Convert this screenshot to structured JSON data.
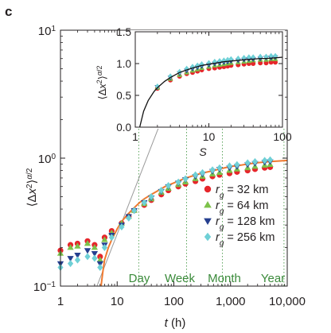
{
  "panel_letter": "c",
  "colors": {
    "red": "#e6262b",
    "green": "#7dc24a",
    "blue": "#253f8f",
    "cyan": "#6fd0d6",
    "fit": "#f07a30",
    "grey": "#9a9a9a",
    "timeline": "#4a9a4a"
  },
  "chart_data": [
    {
      "type": "scatter",
      "scale": "log-log",
      "xlabel": "t (h)",
      "ylabel": "⟨Δx²⟩^(α/2)",
      "xlim": [
        1,
        10000
      ],
      "ylim": [
        0.1,
        10
      ],
      "xticks": [
        {
          "v": 1,
          "label": "1"
        },
        {
          "v": 10,
          "label": "10"
        },
        {
          "v": 100,
          "label": "100"
        },
        {
          "v": 1000,
          "label": "1,000"
        },
        {
          "v": 10000,
          "label": "10,000"
        }
      ],
      "yticks": [
        {
          "v": 0.1,
          "base": "10",
          "exp": "−1"
        },
        {
          "v": 1,
          "base": "10",
          "exp": "0"
        },
        {
          "v": 10,
          "base": "10",
          "exp": "1"
        }
      ],
      "time_markers": [
        {
          "label": "Day",
          "x": 24
        },
        {
          "label": "Week",
          "x": 168
        },
        {
          "label": "Month",
          "x": 720
        },
        {
          "label": "Year",
          "x": 8760
        }
      ],
      "legend_position": "lower-right",
      "series": [
        {
          "name": "r_g = 32 km",
          "symbol_text": "r",
          "subscript": "g",
          "value_text": " = 32 km",
          "color_key": "red",
          "marker": "circle",
          "x": [
            1,
            1.5,
            2,
            3,
            4,
            5,
            6,
            8,
            12,
            16,
            20,
            30,
            40,
            60,
            80,
            120,
            160,
            240,
            320,
            480,
            640,
            960,
            1300,
            2000,
            2700,
            4000,
            5000
          ],
          "y": [
            0.19,
            0.21,
            0.215,
            0.225,
            0.21,
            0.17,
            0.24,
            0.27,
            0.31,
            0.35,
            0.39,
            0.43,
            0.47,
            0.52,
            0.56,
            0.6,
            0.63,
            0.66,
            0.69,
            0.72,
            0.74,
            0.76,
            0.78,
            0.8,
            0.82,
            0.84,
            0.85
          ]
        },
        {
          "name": "r_g = 64 km",
          "symbol_text": "r",
          "subscript": "g",
          "value_text": " = 64 km",
          "color_key": "green",
          "marker": "triangle-up",
          "x": [
            1,
            1.5,
            2,
            3,
            4,
            5,
            6,
            8,
            12,
            16,
            20,
            30,
            40,
            60,
            80,
            120,
            160,
            240,
            320,
            480,
            640,
            960,
            1300,
            2000,
            2700,
            4000,
            5000
          ],
          "y": [
            0.18,
            0.2,
            0.205,
            0.215,
            0.2,
            0.16,
            0.23,
            0.26,
            0.31,
            0.35,
            0.39,
            0.44,
            0.48,
            0.54,
            0.58,
            0.62,
            0.65,
            0.69,
            0.72,
            0.75,
            0.77,
            0.8,
            0.82,
            0.84,
            0.86,
            0.88,
            0.89
          ]
        },
        {
          "name": "r_g = 128 km",
          "symbol_text": "r",
          "subscript": "g",
          "value_text": " = 128 km",
          "color_key": "blue",
          "marker": "triangle-down",
          "x": [
            1,
            1.5,
            2,
            3,
            4,
            5,
            6,
            8,
            12,
            16,
            20,
            30,
            40,
            60,
            80,
            120,
            160,
            240,
            320,
            480,
            640,
            960,
            1300,
            2000,
            2700,
            4000,
            5000
          ],
          "y": [
            0.15,
            0.165,
            0.175,
            0.19,
            0.18,
            0.15,
            0.21,
            0.25,
            0.3,
            0.35,
            0.39,
            0.45,
            0.49,
            0.55,
            0.6,
            0.64,
            0.68,
            0.72,
            0.75,
            0.79,
            0.82,
            0.84,
            0.86,
            0.89,
            0.91,
            0.93,
            0.94
          ]
        },
        {
          "name": "r_g = 256 km",
          "symbol_text": "r",
          "subscript": "g",
          "value_text": " = 256 km",
          "color_key": "cyan",
          "marker": "diamond",
          "x": [
            1,
            1.5,
            2,
            3,
            4,
            5,
            6,
            8,
            12,
            16,
            20,
            30,
            40,
            60,
            80,
            120,
            160,
            240,
            320,
            480,
            640,
            960,
            1300,
            2000,
            2700,
            4000,
            5000
          ],
          "y": [
            0.14,
            0.15,
            0.16,
            0.17,
            0.165,
            0.14,
            0.2,
            0.24,
            0.29,
            0.34,
            0.39,
            0.45,
            0.5,
            0.56,
            0.61,
            0.65,
            0.69,
            0.74,
            0.77,
            0.81,
            0.84,
            0.87,
            0.89,
            0.92,
            0.94,
            0.96,
            0.97
          ]
        }
      ],
      "fit_curve": {
        "color_key": "fit",
        "x": [
          5.2,
          5.6,
          6,
          7,
          8,
          10,
          12,
          15,
          20,
          25,
          30,
          40,
          50,
          70,
          100,
          150,
          200,
          300,
          500,
          700,
          1000,
          1500,
          2000,
          3000,
          5000,
          7000,
          10000
        ],
        "y": [
          0.1,
          0.13,
          0.16,
          0.2,
          0.23,
          0.28,
          0.32,
          0.36,
          0.41,
          0.45,
          0.48,
          0.52,
          0.55,
          0.6,
          0.64,
          0.69,
          0.72,
          0.76,
          0.8,
          0.83,
          0.86,
          0.88,
          0.9,
          0.92,
          0.94,
          0.95,
          0.96
        ]
      },
      "reference_line": {
        "color_key": "grey",
        "x": [
          4.4,
          250
        ],
        "y": [
          0.1,
          10
        ]
      }
    },
    {
      "type": "scatter",
      "role": "inset",
      "scale": "log-x",
      "xlabel": "S",
      "ylabel": "⟨Δx²⟩^(α/2)",
      "xlim": [
        1,
        100
      ],
      "ylim": [
        0,
        1.5
      ],
      "xticks": [
        {
          "v": 1,
          "label": "1"
        },
        {
          "v": 10,
          "label": "10"
        },
        {
          "v": 100,
          "label": "100"
        }
      ],
      "yticks": [
        {
          "v": 0,
          "label": "0.0"
        },
        {
          "v": 0.5,
          "label": "0.5"
        },
        {
          "v": 1,
          "label": "1.0"
        },
        {
          "v": 1.5,
          "label": "1.5"
        }
      ],
      "series": [
        {
          "name": "r_g = 32 km",
          "color_key": "red",
          "marker": "circle",
          "x": [
            2,
            3,
            4,
            5,
            6,
            7,
            8,
            10,
            12,
            14,
            16,
            18,
            20,
            25,
            30,
            35,
            40,
            50,
            60,
            70,
            80
          ],
          "y": [
            0.61,
            0.74,
            0.8,
            0.84,
            0.86,
            0.88,
            0.9,
            0.92,
            0.93,
            0.94,
            0.95,
            0.96,
            0.97,
            0.98,
            0.99,
            1.0,
            1.0,
            1.01,
            1.01,
            1.02,
            1.02
          ]
        },
        {
          "name": "r_g = 64 km",
          "color_key": "green",
          "marker": "triangle-up",
          "x": [
            2,
            3,
            4,
            5,
            6,
            7,
            8,
            10,
            12,
            14,
            16,
            18,
            20,
            25,
            30,
            35,
            40,
            50,
            60,
            70,
            80
          ],
          "y": [
            0.62,
            0.76,
            0.82,
            0.86,
            0.89,
            0.91,
            0.93,
            0.95,
            0.97,
            0.98,
            0.99,
            1.0,
            1.01,
            1.02,
            1.03,
            1.04,
            1.05,
            1.06,
            1.06,
            1.07,
            1.07
          ]
        },
        {
          "name": "r_g = 128 km",
          "color_key": "blue",
          "marker": "triangle-down",
          "x": [
            2,
            3,
            4,
            5,
            6,
            7,
            8,
            10,
            12,
            14,
            16,
            18,
            20,
            25,
            30,
            35,
            40,
            50,
            60,
            70,
            80
          ],
          "y": [
            0.63,
            0.78,
            0.85,
            0.89,
            0.92,
            0.94,
            0.96,
            0.98,
            1.0,
            1.01,
            1.02,
            1.03,
            1.04,
            1.05,
            1.06,
            1.07,
            1.07,
            1.08,
            1.09,
            1.09,
            1.1
          ]
        },
        {
          "name": "r_g = 256 km",
          "color_key": "cyan",
          "marker": "diamond",
          "x": [
            2,
            3,
            4,
            5,
            6,
            7,
            8,
            10,
            12,
            14,
            16,
            18,
            20,
            25,
            30,
            35,
            40,
            50,
            60,
            70,
            80
          ],
          "y": [
            0.64,
            0.8,
            0.87,
            0.92,
            0.95,
            0.97,
            0.99,
            1.01,
            1.03,
            1.04,
            1.05,
            1.06,
            1.07,
            1.08,
            1.09,
            1.1,
            1.1,
            1.11,
            1.11,
            1.12,
            1.12
          ]
        }
      ],
      "fit_curve": {
        "color_key": "black",
        "x": [
          1.15,
          1.3,
          1.5,
          1.8,
          2,
          2.5,
          3,
          4,
          5,
          6,
          8,
          10,
          13,
          16,
          20,
          25,
          30,
          40,
          50,
          60,
          80,
          100
        ],
        "y": [
          0.0,
          0.25,
          0.42,
          0.56,
          0.62,
          0.72,
          0.78,
          0.86,
          0.9,
          0.93,
          0.97,
          0.99,
          1.01,
          1.03,
          1.04,
          1.05,
          1.06,
          1.07,
          1.08,
          1.08,
          1.09,
          1.1
        ]
      }
    }
  ]
}
